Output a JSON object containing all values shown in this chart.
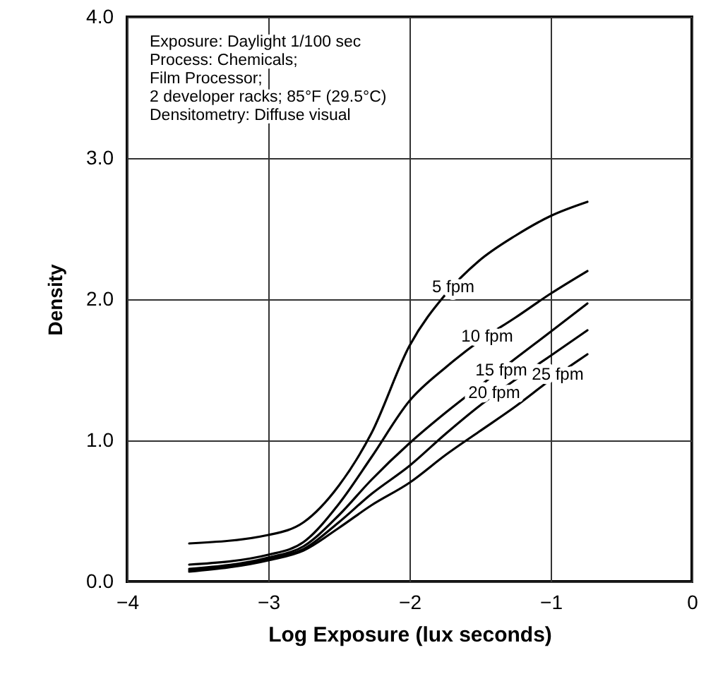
{
  "chart_data": {
    "type": "line",
    "xlabel": "Log Exposure (lux seconds)",
    "ylabel": "Density",
    "xlim": [
      -4,
      0
    ],
    "ylim": [
      0,
      4
    ],
    "xticks": [
      {
        "value": -4,
        "label": "−4"
      },
      {
        "value": -3,
        "label": "−3"
      },
      {
        "value": -2,
        "label": "−2"
      },
      {
        "value": -1,
        "label": "−1"
      },
      0
    ],
    "yticks": [
      {
        "value": 0,
        "label": "0.0"
      },
      {
        "value": 1,
        "label": "1.0"
      },
      {
        "value": 2,
        "label": "2.0"
      },
      {
        "value": 3,
        "label": "3.0"
      },
      {
        "value": 4,
        "label": "4.0"
      }
    ],
    "grid": true,
    "line_style": "solid",
    "marker": "none",
    "x": [
      -3.56,
      -3,
      -2.75,
      -2.5,
      -2.27,
      -2,
      -1.74,
      -1.51,
      -1.25,
      -1,
      -0.74
    ],
    "series": [
      {
        "color": "#000000",
        "values": [
          0.27,
          0.33,
          0.42,
          0.68,
          1.05,
          1.67,
          2.04,
          2.27,
          2.45,
          2.59,
          2.69
        ]
      },
      {
        "color": "#000000",
        "values": [
          0.12,
          0.19,
          0.28,
          0.55,
          0.88,
          1.28,
          1.52,
          1.7,
          1.87,
          2.04,
          2.2
        ]
      },
      {
        "color": "#000000",
        "values": [
          0.09,
          0.17,
          0.25,
          0.47,
          0.72,
          0.98,
          1.2,
          1.38,
          1.58,
          1.77,
          1.97
        ]
      },
      {
        "color": "#000000",
        "values": [
          0.08,
          0.16,
          0.23,
          0.42,
          0.62,
          0.82,
          1.05,
          1.24,
          1.43,
          1.6,
          1.78
        ]
      },
      {
        "color": "#000000",
        "values": [
          0.07,
          0.15,
          0.22,
          0.38,
          0.54,
          0.7,
          0.9,
          1.06,
          1.24,
          1.43,
          1.61
        ]
      }
    ],
    "annotations": [
      "Exposure: Daylight  1/100 sec",
      "Process: Chemicals;",
      "Film Processor;",
      "2 developer racks; 85°F (29.5°C)",
      "Densitometry: Diffuse visual",
      {
        "text": "5 fpm",
        "x": -1.69,
        "y": 2.09
      },
      {
        "text": "10 fpm",
        "x": -1.45,
        "y": 1.74
      },
      {
        "text": "15 fpm",
        "x": -1.35,
        "y": 1.5
      },
      {
        "text": "20 fpm",
        "x": -1.4,
        "y": 1.34
      },
      {
        "text": "25 fpm",
        "x": -0.95,
        "y": 1.47
      }
    ]
  }
}
